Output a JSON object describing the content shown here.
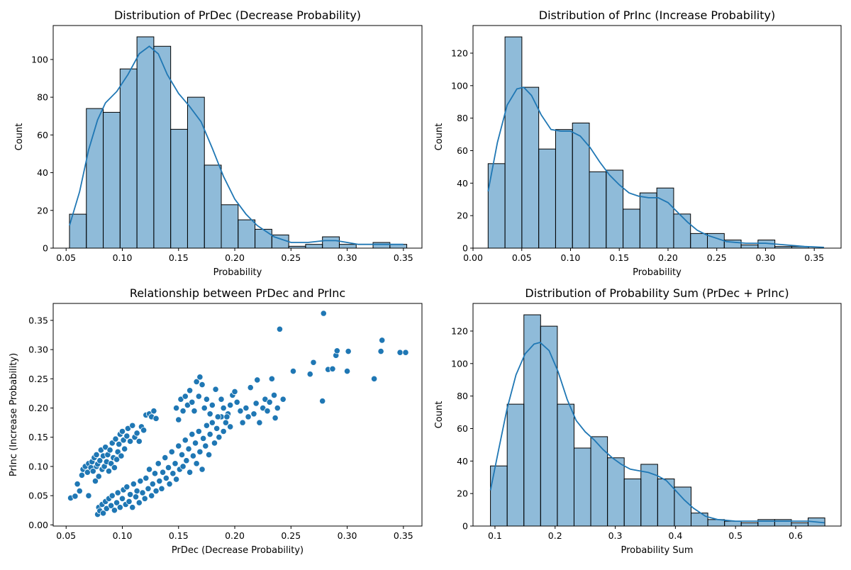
{
  "chart_data": [
    {
      "type": "bar",
      "title": "Distribution of PrDec (Decrease Probability)",
      "xlabel": "Probability",
      "ylabel": "Count",
      "xlim": [
        0.0385,
        0.3665
      ],
      "ylim": [
        0,
        118
      ],
      "xticks": [
        "0.05",
        "0.10",
        "0.15",
        "0.20",
        "0.25",
        "0.30",
        "0.35"
      ],
      "yticks": [
        "0",
        "20",
        "40",
        "60",
        "80",
        "100"
      ],
      "bin_start": 0.053,
      "bin_width": 0.015,
      "values": [
        18,
        74,
        72,
        95,
        112,
        107,
        63,
        80,
        44,
        23,
        15,
        10,
        7,
        1,
        2,
        6,
        2,
        0,
        3,
        2
      ],
      "kde": [
        [
          0.053,
          12
        ],
        [
          0.062,
          30
        ],
        [
          0.07,
          52
        ],
        [
          0.078,
          68
        ],
        [
          0.085,
          77
        ],
        [
          0.095,
          83
        ],
        [
          0.105,
          92
        ],
        [
          0.115,
          103
        ],
        [
          0.124,
          107
        ],
        [
          0.132,
          103
        ],
        [
          0.14,
          92
        ],
        [
          0.15,
          82
        ],
        [
          0.16,
          75
        ],
        [
          0.17,
          67
        ],
        [
          0.18,
          53
        ],
        [
          0.19,
          38
        ],
        [
          0.2,
          26
        ],
        [
          0.21,
          18
        ],
        [
          0.22,
          12
        ],
        [
          0.235,
          6
        ],
        [
          0.25,
          3
        ],
        [
          0.265,
          3
        ],
        [
          0.28,
          4
        ],
        [
          0.29,
          4
        ],
        [
          0.3,
          3
        ],
        [
          0.31,
          2
        ],
        [
          0.33,
          2
        ],
        [
          0.35,
          2
        ]
      ],
      "color": "#1f77b4"
    },
    {
      "type": "bar",
      "title": "Distribution of PrInc (Increase Probability)",
      "xlabel": "Probability",
      "ylabel": "Count",
      "xlim": [
        0.0,
        0.3775
      ],
      "ylim": [
        0,
        137
      ],
      "xticks": [
        "0.00",
        "0.05",
        "0.10",
        "0.15",
        "0.20",
        "0.25",
        "0.30",
        "0.35"
      ],
      "yticks": [
        "0",
        "20",
        "40",
        "60",
        "80",
        "100",
        "120"
      ],
      "bin_start": 0.0155,
      "bin_width": 0.0173,
      "values": [
        52,
        130,
        99,
        61,
        73,
        77,
        47,
        48,
        24,
        34,
        37,
        21,
        9,
        9,
        5,
        2,
        5,
        1,
        1,
        0
      ],
      "kde": [
        [
          0.0155,
          35
        ],
        [
          0.025,
          65
        ],
        [
          0.035,
          88
        ],
        [
          0.045,
          98
        ],
        [
          0.052,
          99
        ],
        [
          0.06,
          94
        ],
        [
          0.07,
          82
        ],
        [
          0.08,
          73
        ],
        [
          0.09,
          72
        ],
        [
          0.1,
          72
        ],
        [
          0.11,
          69
        ],
        [
          0.12,
          62
        ],
        [
          0.13,
          53
        ],
        [
          0.14,
          45
        ],
        [
          0.15,
          39
        ],
        [
          0.16,
          34
        ],
        [
          0.17,
          32
        ],
        [
          0.18,
          31
        ],
        [
          0.19,
          31
        ],
        [
          0.2,
          28
        ],
        [
          0.21,
          22
        ],
        [
          0.22,
          16
        ],
        [
          0.23,
          11
        ],
        [
          0.24,
          8
        ],
        [
          0.25,
          6
        ],
        [
          0.26,
          4
        ],
        [
          0.28,
          3
        ],
        [
          0.3,
          3
        ],
        [
          0.32,
          2
        ],
        [
          0.34,
          1
        ],
        [
          0.36,
          0.5
        ]
      ],
      "color": "#1f77b4"
    },
    {
      "type": "scatter",
      "title": "Relationship between PrDec and PrInc",
      "xlabel": "PrDec (Decrease Probability)",
      "ylabel": "PrInc (Increase Probability)",
      "xlim": [
        0.0385,
        0.3665
      ],
      "ylim": [
        -0.002,
        0.379
      ],
      "xticks": [
        "0.05",
        "0.10",
        "0.15",
        "0.20",
        "0.25",
        "0.30",
        "0.35"
      ],
      "yticks": [
        "0.00",
        "0.05",
        "0.10",
        "0.15",
        "0.20",
        "0.25",
        "0.30",
        "0.35"
      ],
      "points": [
        [
          0.054,
          0.046
        ],
        [
          0.058,
          0.049
        ],
        [
          0.06,
          0.07
        ],
        [
          0.062,
          0.058
        ],
        [
          0.064,
          0.085
        ],
        [
          0.065,
          0.095
        ],
        [
          0.067,
          0.1
        ],
        [
          0.069,
          0.09
        ],
        [
          0.07,
          0.05
        ],
        [
          0.07,
          0.105
        ],
        [
          0.072,
          0.098
        ],
        [
          0.073,
          0.108
        ],
        [
          0.074,
          0.092
        ],
        [
          0.075,
          0.115
        ],
        [
          0.076,
          0.075
        ],
        [
          0.077,
          0.1
        ],
        [
          0.077,
          0.12
        ],
        [
          0.078,
          0.104
        ],
        [
          0.079,
          0.083
        ],
        [
          0.08,
          0.11
        ],
        [
          0.081,
          0.128
        ],
        [
          0.082,
          0.095
        ],
        [
          0.083,
          0.118
        ],
        [
          0.084,
          0.1
        ],
        [
          0.085,
          0.133
        ],
        [
          0.086,
          0.108
        ],
        [
          0.087,
          0.12
        ],
        [
          0.088,
          0.092
        ],
        [
          0.089,
          0.128
        ],
        [
          0.09,
          0.105
        ],
        [
          0.091,
          0.14
        ],
        [
          0.092,
          0.115
        ],
        [
          0.093,
          0.098
        ],
        [
          0.094,
          0.147
        ],
        [
          0.095,
          0.112
        ],
        [
          0.096,
          0.125
        ],
        [
          0.097,
          0.138
        ],
        [
          0.098,
          0.155
        ],
        [
          0.099,
          0.118
        ],
        [
          0.1,
          0.16
        ],
        [
          0.101,
          0.145
        ],
        [
          0.102,
          0.13
        ],
        [
          0.104,
          0.152
        ],
        [
          0.105,
          0.165
        ],
        [
          0.107,
          0.143
        ],
        [
          0.109,
          0.17
        ],
        [
          0.111,
          0.15
        ],
        [
          0.113,
          0.157
        ],
        [
          0.115,
          0.143
        ],
        [
          0.117,
          0.168
        ],
        [
          0.119,
          0.162
        ],
        [
          0.121,
          0.188
        ],
        [
          0.124,
          0.19
        ],
        [
          0.126,
          0.185
        ],
        [
          0.128,
          0.195
        ],
        [
          0.13,
          0.182
        ],
        [
          0.078,
          0.018
        ],
        [
          0.079,
          0.03
        ],
        [
          0.08,
          0.024
        ],
        [
          0.082,
          0.035
        ],
        [
          0.083,
          0.02
        ],
        [
          0.085,
          0.04
        ],
        [
          0.086,
          0.028
        ],
        [
          0.088,
          0.045
        ],
        [
          0.09,
          0.033
        ],
        [
          0.091,
          0.05
        ],
        [
          0.093,
          0.025
        ],
        [
          0.095,
          0.038
        ],
        [
          0.096,
          0.055
        ],
        [
          0.098,
          0.03
        ],
        [
          0.1,
          0.045
        ],
        [
          0.101,
          0.06
        ],
        [
          0.103,
          0.035
        ],
        [
          0.104,
          0.065
        ],
        [
          0.106,
          0.04
        ],
        [
          0.107,
          0.052
        ],
        [
          0.109,
          0.03
        ],
        [
          0.11,
          0.07
        ],
        [
          0.112,
          0.048
        ],
        [
          0.113,
          0.058
        ],
        [
          0.115,
          0.038
        ],
        [
          0.116,
          0.075
        ],
        [
          0.118,
          0.055
        ],
        [
          0.12,
          0.045
        ],
        [
          0.121,
          0.08
        ],
        [
          0.123,
          0.062
        ],
        [
          0.124,
          0.095
        ],
        [
          0.126,
          0.05
        ],
        [
          0.127,
          0.07
        ],
        [
          0.129,
          0.088
        ],
        [
          0.13,
          0.058
        ],
        [
          0.132,
          0.105
        ],
        [
          0.133,
          0.075
        ],
        [
          0.135,
          0.062
        ],
        [
          0.136,
          0.09
        ],
        [
          0.138,
          0.115
        ],
        [
          0.139,
          0.08
        ],
        [
          0.141,
          0.098
        ],
        [
          0.142,
          0.07
        ],
        [
          0.144,
          0.125
        ],
        [
          0.145,
          0.088
        ],
        [
          0.147,
          0.105
        ],
        [
          0.148,
          0.078
        ],
        [
          0.15,
          0.135
        ],
        [
          0.151,
          0.095
        ],
        [
          0.153,
          0.12
        ],
        [
          0.154,
          0.1
        ],
        [
          0.156,
          0.145
        ],
        [
          0.157,
          0.11
        ],
        [
          0.159,
          0.13
        ],
        [
          0.16,
          0.09
        ],
        [
          0.162,
          0.155
        ],
        [
          0.163,
          0.118
        ],
        [
          0.165,
          0.14
        ],
        [
          0.166,
          0.105
        ],
        [
          0.168,
          0.16
        ],
        [
          0.169,
          0.125
        ],
        [
          0.171,
          0.095
        ],
        [
          0.172,
          0.148
        ],
        [
          0.174,
          0.135
        ],
        [
          0.175,
          0.17
        ],
        [
          0.177,
          0.12
        ],
        [
          0.178,
          0.155
        ],
        [
          0.18,
          0.175
        ],
        [
          0.182,
          0.14
        ],
        [
          0.184,
          0.165
        ],
        [
          0.186,
          0.15
        ],
        [
          0.188,
          0.185
        ],
        [
          0.19,
          0.16
        ],
        [
          0.192,
          0.175
        ],
        [
          0.194,
          0.19
        ],
        [
          0.196,
          0.168
        ],
        [
          0.148,
          0.2
        ],
        [
          0.15,
          0.18
        ],
        [
          0.152,
          0.215
        ],
        [
          0.154,
          0.195
        ],
        [
          0.156,
          0.22
        ],
        [
          0.158,
          0.205
        ],
        [
          0.16,
          0.23
        ],
        [
          0.162,
          0.21
        ],
        [
          0.164,
          0.195
        ],
        [
          0.166,
          0.245
        ],
        [
          0.168,
          0.22
        ],
        [
          0.169,
          0.253
        ],
        [
          0.171,
          0.24
        ],
        [
          0.173,
          0.2
        ],
        [
          0.175,
          0.215
        ],
        [
          0.178,
          0.19
        ],
        [
          0.18,
          0.205
        ],
        [
          0.183,
          0.232
        ],
        [
          0.185,
          0.185
        ],
        [
          0.188,
          0.215
        ],
        [
          0.19,
          0.2
        ],
        [
          0.193,
          0.185
        ],
        [
          0.196,
          0.205
        ],
        [
          0.198,
          0.222
        ],
        [
          0.2,
          0.228
        ],
        [
          0.202,
          0.21
        ],
        [
          0.205,
          0.195
        ],
        [
          0.207,
          0.175
        ],
        [
          0.21,
          0.2
        ],
        [
          0.212,
          0.185
        ],
        [
          0.214,
          0.235
        ],
        [
          0.217,
          0.19
        ],
        [
          0.219,
          0.208
        ],
        [
          0.22,
          0.248
        ],
        [
          0.222,
          0.175
        ],
        [
          0.225,
          0.2
        ],
        [
          0.227,
          0.215
        ],
        [
          0.229,
          0.195
        ],
        [
          0.231,
          0.21
        ],
        [
          0.233,
          0.25
        ],
        [
          0.235,
          0.222
        ],
        [
          0.236,
          0.183
        ],
        [
          0.238,
          0.2
        ],
        [
          0.24,
          0.335
        ],
        [
          0.243,
          0.215
        ],
        [
          0.252,
          0.263
        ],
        [
          0.267,
          0.258
        ],
        [
          0.27,
          0.278
        ],
        [
          0.278,
          0.212
        ],
        [
          0.279,
          0.362
        ],
        [
          0.283,
          0.266
        ],
        [
          0.287,
          0.267
        ],
        [
          0.29,
          0.29
        ],
        [
          0.291,
          0.298
        ],
        [
          0.3,
          0.263
        ],
        [
          0.301,
          0.297
        ],
        [
          0.324,
          0.25
        ],
        [
          0.33,
          0.297
        ],
        [
          0.331,
          0.316
        ],
        [
          0.347,
          0.295
        ],
        [
          0.352,
          0.295
        ]
      ],
      "color": "#1f77b4"
    },
    {
      "type": "bar",
      "title": "Distribution of Probability Sum (PrDec + PrInc)",
      "xlabel": "Probability Sum",
      "ylabel": "Count",
      "xlim": [
        0.0635,
        0.6755
      ],
      "ylim": [
        0,
        137
      ],
      "xticks": [
        "0.1",
        "0.2",
        "0.3",
        "0.4",
        "0.5",
        "0.6"
      ],
      "yticks": [
        "0",
        "20",
        "40",
        "60",
        "80",
        "100",
        "120"
      ],
      "bin_start": 0.0925,
      "bin_width": 0.0278,
      "values": [
        37,
        75,
        130,
        123,
        75,
        48,
        55,
        42,
        29,
        38,
        29,
        24,
        8,
        4,
        3,
        2,
        4,
        4,
        2,
        5
      ],
      "kde": [
        [
          0.0925,
          22
        ],
        [
          0.105,
          45
        ],
        [
          0.12,
          72
        ],
        [
          0.135,
          93
        ],
        [
          0.15,
          106
        ],
        [
          0.165,
          112
        ],
        [
          0.175,
          113
        ],
        [
          0.19,
          108
        ],
        [
          0.205,
          95
        ],
        [
          0.22,
          78
        ],
        [
          0.235,
          65
        ],
        [
          0.25,
          58
        ],
        [
          0.265,
          53
        ],
        [
          0.28,
          47
        ],
        [
          0.295,
          42
        ],
        [
          0.31,
          38
        ],
        [
          0.325,
          35
        ],
        [
          0.34,
          34
        ],
        [
          0.355,
          33
        ],
        [
          0.37,
          31
        ],
        [
          0.385,
          28
        ],
        [
          0.4,
          22
        ],
        [
          0.415,
          16
        ],
        [
          0.43,
          11
        ],
        [
          0.45,
          6
        ],
        [
          0.47,
          4
        ],
        [
          0.5,
          3
        ],
        [
          0.53,
          3
        ],
        [
          0.56,
          3
        ],
        [
          0.59,
          3
        ],
        [
          0.62,
          3
        ],
        [
          0.648,
          2
        ]
      ],
      "color": "#1f77b4"
    }
  ]
}
